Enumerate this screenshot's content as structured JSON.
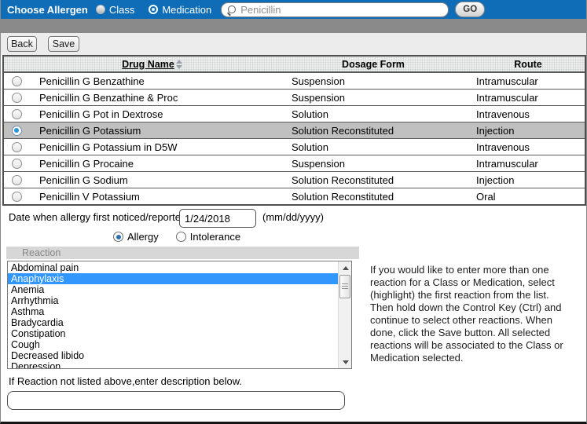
{
  "topbar": {
    "title": "Choose Allergen",
    "radio_class_label": "Class",
    "radio_medication_label": "Medication",
    "selected_mode": "Medication",
    "search_value": "Penicillin",
    "go_label": "GO"
  },
  "toolbar": {
    "back_label": "Back",
    "save_label": "Save"
  },
  "table": {
    "columns": {
      "drug": "Drug Name",
      "form": "Dosage Form",
      "route": "Route"
    },
    "sort_icon": "up-down-arrows",
    "selected_index": 3,
    "rows": [
      {
        "drug": "Penicillin G Benzathine",
        "form": "Suspension",
        "route": "Intramuscular"
      },
      {
        "drug": "Penicillin G Benzathine & Proc",
        "form": "Suspension",
        "route": "Intramuscular"
      },
      {
        "drug": "Penicillin G Pot in Dextrose",
        "form": "Solution",
        "route": "Intravenous"
      },
      {
        "drug": "Penicillin G Potassium",
        "form": "Solution Reconstituted",
        "route": "Injection"
      },
      {
        "drug": "Penicillin G Potassium in D5W",
        "form": "Solution",
        "route": "Intravenous"
      },
      {
        "drug": "Penicillin G Procaine",
        "form": "Suspension",
        "route": "Intramuscular"
      },
      {
        "drug": "Penicillin G Sodium",
        "form": "Solution Reconstituted",
        "route": "Injection"
      },
      {
        "drug": "Penicillin V Potassium",
        "form": "Solution Reconstituted",
        "route": "Oral"
      }
    ]
  },
  "date_section": {
    "label": "Date when allergy first noticed/reported:",
    "value": "1/24/2018",
    "format_hint": "(mm/dd/yyyy)"
  },
  "type_radios": {
    "allergy_label": "Allergy",
    "intolerance_label": "Intolerance",
    "selected": "Allergy"
  },
  "reaction": {
    "header": "Reaction",
    "selected_item": "Anaphylaxis",
    "items": [
      "Abdominal pain",
      "Anaphylaxis",
      "Anemia",
      "Arrhythmia",
      "Asthma",
      "Bradycardia",
      "Constipation",
      "Cough",
      "Decreased libido",
      "Depression"
    ],
    "help_text": "If you would like to enter more than one reaction for a Class or Medication, select (highlight) the first reaction from the list. Then hold down the Control Key (Ctrl) and continue to select other reactions. When done, click the Save button. All selected reactions will be associated to the Class or Medication selected.",
    "not_listed_label": "If Reaction not listed above,enter description below.",
    "description_value": ""
  },
  "colors": {
    "topbar_blue": "#0e6db6",
    "strip_gray": "#8a8a8a",
    "selected_row_gray": "#c0c0c0",
    "list_selection_blue": "#3297fd",
    "row_radio_blue": "#2a95d8"
  }
}
